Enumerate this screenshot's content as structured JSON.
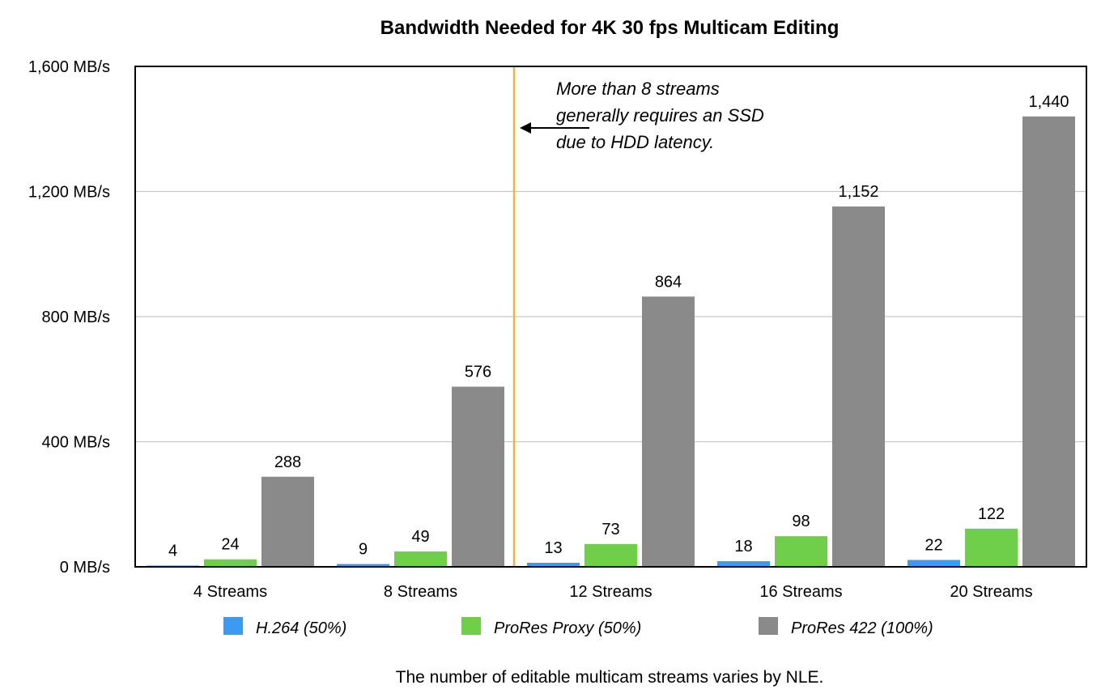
{
  "chart_data": {
    "type": "bar",
    "title": "Bandwidth Needed for 4K 30 fps Multicam Editing",
    "categories": [
      "4 Streams",
      "8 Streams",
      "12 Streams",
      "16 Streams",
      "20 Streams"
    ],
    "series": [
      {
        "name": "H.264 (50%)",
        "values": [
          4,
          9,
          13,
          18,
          22
        ],
        "color": "#3a9bf0"
      },
      {
        "name": "ProRes Proxy (50%)",
        "values": [
          24,
          49,
          73,
          98,
          122
        ],
        "color": "#6fcf4a"
      },
      {
        "name": "ProRes 422 (100%)",
        "values": [
          288,
          576,
          864,
          1152,
          1440
        ],
        "color": "#8a8a8a"
      }
    ],
    "data_labels": [
      [
        "4",
        "9",
        "13",
        "18",
        "22"
      ],
      [
        "24",
        "49",
        "73",
        "98",
        "122"
      ],
      [
        "288",
        "576",
        "864",
        "1,152",
        "1,440"
      ]
    ],
    "y_ticks": [
      0,
      400,
      800,
      1200,
      1600
    ],
    "y_tick_labels": [
      "0 MB/s",
      "400 MB/s",
      "800 MB/s",
      "1,200 MB/s",
      "1,600 MB/s"
    ],
    "ylim": [
      0,
      1600
    ],
    "grid": true,
    "legend_position": "bottom",
    "reference_line": {
      "between_categories": [
        "8 Streams",
        "12 Streams"
      ],
      "color": "#f2b33d"
    },
    "annotation": {
      "lines": [
        "More than 8 streams",
        "generally requires an SSD",
        "due to HDD latency."
      ]
    },
    "footnote": "The number of editable multicam streams varies by NLE.",
    "xlabel": "",
    "ylabel": ""
  }
}
